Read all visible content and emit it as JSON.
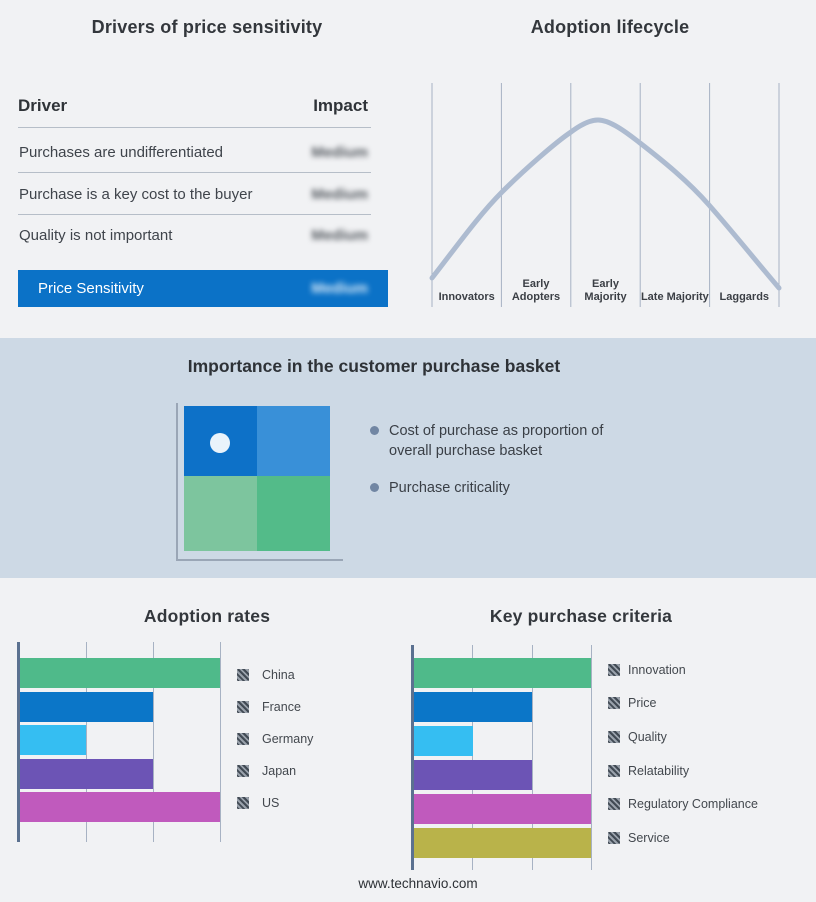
{
  "page": {
    "background": "#f1f2f4",
    "band_background": "#cdd9e5",
    "footer_url": "www.technavio.com"
  },
  "drivers_panel": {
    "title": "Drivers of price sensitivity",
    "columns": {
      "driver": "Driver",
      "impact": "Impact"
    },
    "rows": [
      {
        "driver": "Purchases are undifferentiated",
        "impact": "Medium"
      },
      {
        "driver": "Purchase is a key cost to the buyer",
        "impact": "Medium"
      },
      {
        "driver": "Quality is not important",
        "impact": "Medium"
      }
    ],
    "summary": {
      "label": "Price Sensitivity",
      "impact": "Medium",
      "bar_color": "#0b72c7"
    }
  },
  "basket_panel": {
    "title": "Importance in the customer purchase basket",
    "bullets": [
      "Cost of purchase as proportion of overall purchase basket",
      "Purchase criticality"
    ],
    "quadrant_colors": {
      "top_left": "#0d71c8",
      "top_right": "#3990d8",
      "bottom_left": "#7dc59e",
      "bottom_right": "#53bb89"
    },
    "marker": {
      "quadrant": "top_left",
      "color": "#e9f3fb"
    }
  },
  "chart_data": [
    {
      "type": "line",
      "title": "Adoption lifecycle",
      "categories": [
        "Innovators",
        "Early Adopters",
        "Early Majority",
        "Late Majority",
        "Laggards"
      ],
      "description": "Bell-shaped adoption curve rising through Innovators and Early Adopters, peaking at Early Majority, declining through Late Majority and Laggards",
      "curve_color": "#adbbd0",
      "gridline_color": "#a7b2c3",
      "grid": true,
      "legend_position": "none"
    },
    {
      "type": "bar",
      "title": "Adoption rates",
      "orientation": "horizontal",
      "categories": [
        "China",
        "France",
        "Germany",
        "Japan",
        "US"
      ],
      "values": [
        3,
        2,
        1,
        2,
        3
      ],
      "xlim": [
        0,
        3
      ],
      "colors": [
        "#4fba8a",
        "#0b76c8",
        "#35bef2",
        "#6c54b5",
        "#c05abd"
      ],
      "axis_color": "#5b7190",
      "grid": true,
      "legend_position": "right"
    },
    {
      "type": "bar",
      "title": "Key purchase criteria",
      "orientation": "horizontal",
      "categories": [
        "Innovation",
        "Price",
        "Quality",
        "Relatability",
        "Regulatory Compliance",
        "Service"
      ],
      "values": [
        3,
        2,
        1,
        2,
        3,
        3
      ],
      "xlim": [
        0,
        3
      ],
      "colors": [
        "#4fba8a",
        "#0b76c8",
        "#35bef2",
        "#6c54b5",
        "#c05abd",
        "#b9b34a"
      ],
      "axis_color": "#5b7190",
      "grid": true,
      "legend_position": "right"
    }
  ]
}
